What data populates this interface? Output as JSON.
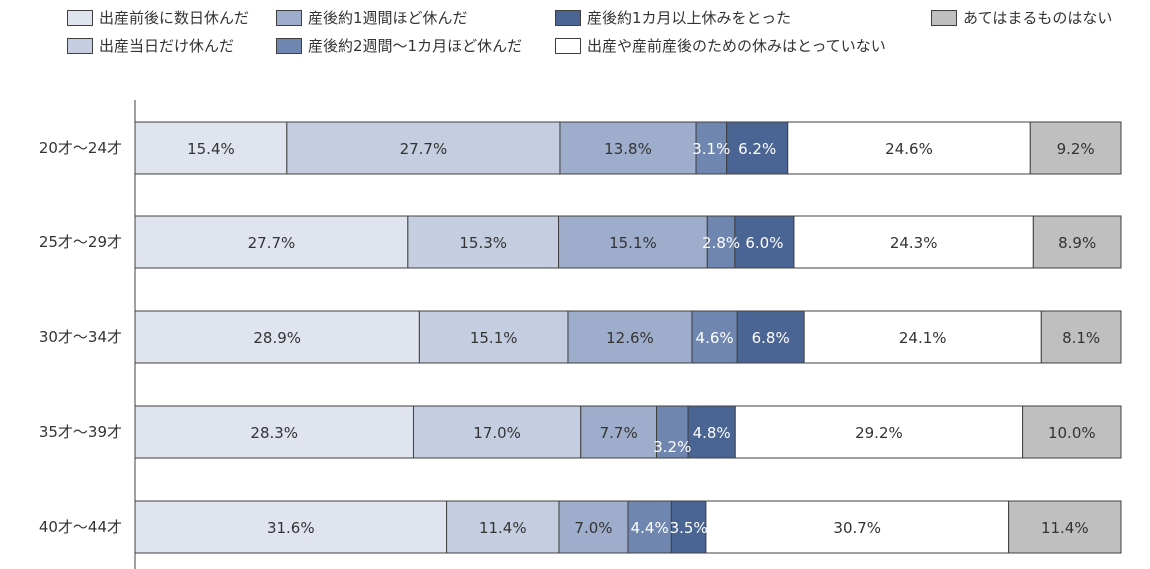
{
  "chart_data": {
    "type": "bar",
    "orientation": "horizontal",
    "stacked": true,
    "percent_stacked": true,
    "categories": [
      "20才〜24才",
      "25才〜29才",
      "30才〜34才",
      "35才〜39才",
      "40才〜44才"
    ],
    "series": [
      {
        "name": "出産前後に数日休んだ",
        "color": "#dfe4ee",
        "label_color": "#333333",
        "values": [
          15.4,
          27.7,
          28.9,
          28.3,
          31.6
        ],
        "labels": [
          "15.4%",
          "27.7%",
          "28.9%",
          "28.3%",
          "31.6%"
        ]
      },
      {
        "name": "出産当日だけ休んだ",
        "color": "#c4cee0",
        "label_color": "#333333",
        "values": [
          27.7,
          15.3,
          15.1,
          17.0,
          11.4
        ],
        "labels": [
          "27.7%",
          "15.3%",
          "15.1%",
          "17.0%",
          "11.4%"
        ]
      },
      {
        "name": "産後約1週間ほど休んだ",
        "color": "#9dadcb",
        "label_color": "#333333",
        "values": [
          13.8,
          15.1,
          12.6,
          7.7,
          7.0
        ],
        "labels": [
          "13.8%",
          "15.1%",
          "12.6%",
          "7.7%",
          "7.0%"
        ]
      },
      {
        "name": "産後約2週間〜1カ月ほど休んだ",
        "color": "#6f86b0",
        "label_color": "#ffffff",
        "values": [
          3.1,
          2.8,
          4.6,
          3.2,
          4.4
        ],
        "labels": [
          "3.1%",
          "2.8%",
          "4.6%",
          "3.2%",
          "4.4%"
        ]
      },
      {
        "name": "産後約1カ月以上休みをとった",
        "color": "#4a6494",
        "label_color": "#ffffff",
        "values": [
          6.2,
          6.0,
          6.8,
          4.8,
          3.5
        ],
        "labels": [
          "6.2%",
          "6.0%",
          "6.8%",
          "4.8%",
          "3.5%"
        ]
      },
      {
        "name": "出産や産前産後のための休みはとっていない",
        "color": "#ffffff",
        "label_color": "#333333",
        "values": [
          24.6,
          24.3,
          24.1,
          29.2,
          30.7
        ],
        "labels": [
          "24.6%",
          "24.3%",
          "24.1%",
          "29.2%",
          "30.7%"
        ]
      },
      {
        "name": "あてはまるものはない",
        "color": "#bfbfbf",
        "label_color": "#333333",
        "values": [
          9.2,
          8.9,
          8.1,
          10.0,
          11.4
        ],
        "labels": [
          "9.2%",
          "8.9%",
          "8.1%",
          "10.0%",
          "11.4%"
        ]
      }
    ],
    "xlim": [
      0,
      100
    ],
    "grid": false,
    "legend_position": "top"
  }
}
